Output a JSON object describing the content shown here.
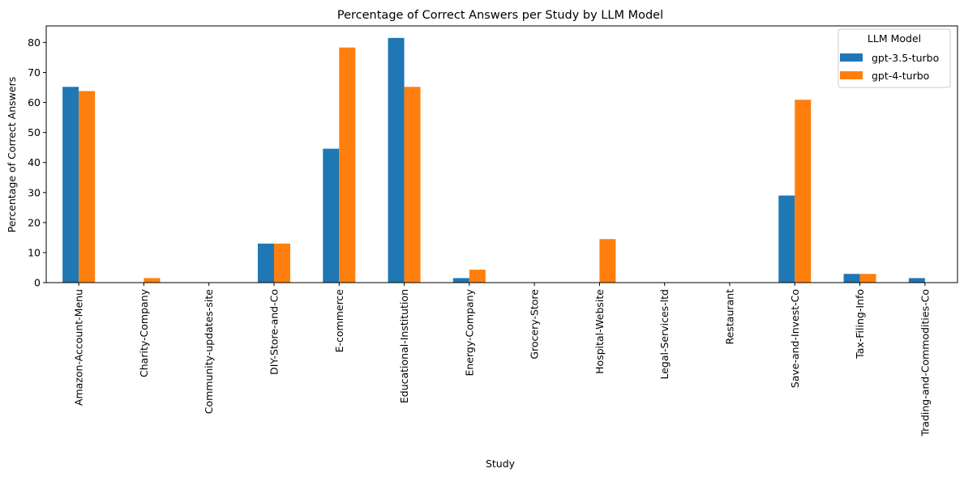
{
  "chart_data": {
    "type": "bar",
    "title": "Percentage of Correct Answers per Study by LLM Model",
    "xlabel": "Study",
    "ylabel": "Percentage of Correct Answers",
    "ylim": [
      0,
      85.5
    ],
    "yticks": [
      0,
      10,
      20,
      30,
      40,
      50,
      60,
      70,
      80
    ],
    "grid": false,
    "legend": {
      "title": "LLM Model",
      "placement": "top-right"
    },
    "categories": [
      "Amazon-Account-Menu",
      "Charity-Company",
      "Community-updates-site",
      "DIY-Store-and-Co",
      "E-commerce",
      "Educational-Institution",
      "Energy-Company",
      "Grocery-Store",
      "Hospital-Website",
      "Legal-Services-ltd",
      "Restaurant",
      "Save-and-Invest-Co",
      "Tax-Filing-Info",
      "Trading-and-Commodities-Co"
    ],
    "series": [
      {
        "name": "gpt-3.5-turbo",
        "color": "#1f77b4",
        "values": [
          65.2,
          0,
          0,
          13.0,
          44.6,
          81.5,
          1.5,
          0,
          0,
          0,
          0,
          29.0,
          2.9,
          1.5
        ]
      },
      {
        "name": "gpt-4-turbo",
        "color": "#ff7f0e",
        "values": [
          63.8,
          1.5,
          0,
          13.0,
          78.3,
          65.2,
          4.3,
          0,
          14.5,
          0,
          0,
          60.9,
          2.9,
          0
        ]
      }
    ]
  }
}
